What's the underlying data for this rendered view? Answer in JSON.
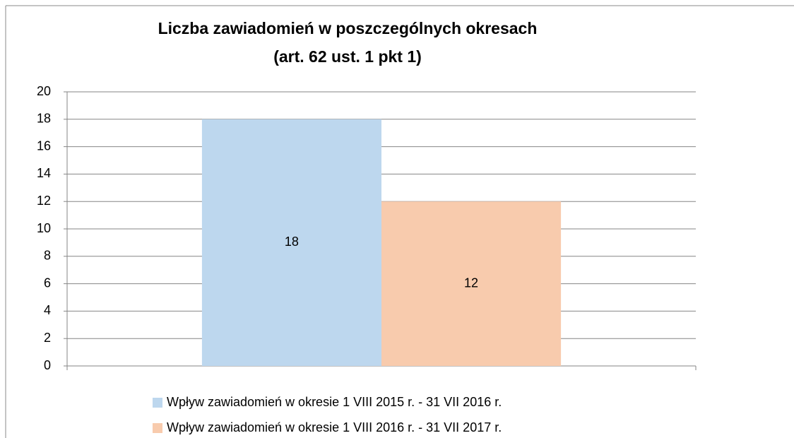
{
  "chart_data": {
    "type": "bar",
    "title": "Liczba zawiadomień w poszczególnych okresach",
    "subtitle": "(art. 62 ust. 1 pkt 1)",
    "categories": [
      null
    ],
    "series": [
      {
        "name": "Wpływ zawiadomień w okresie 1 VIII 2015 r. - 31 VII 2016 r.",
        "color": "#bdd7ee",
        "values": [
          18
        ]
      },
      {
        "name": "Wpływ zawiadomień w okresie 1 VIII 2016 r. - 31 VII 2017 r.",
        "color": "#f8cbad",
        "values": [
          12
        ]
      }
    ],
    "ylim": [
      0,
      20
    ],
    "yticks": [
      0,
      2,
      4,
      6,
      8,
      10,
      12,
      14,
      16,
      18,
      20
    ],
    "grid": true,
    "legend": "bottom",
    "data_labels": true
  }
}
